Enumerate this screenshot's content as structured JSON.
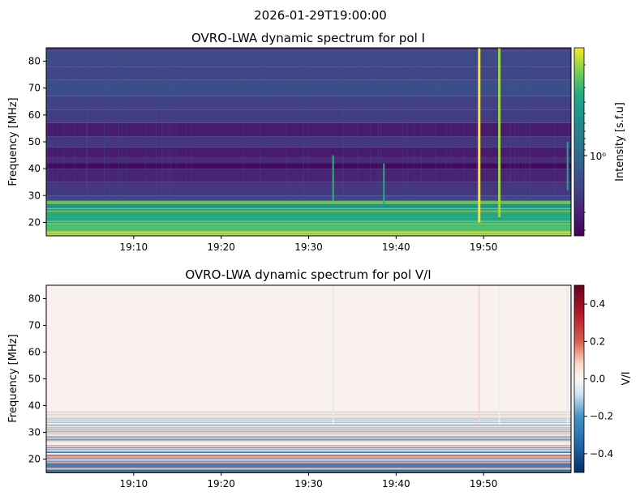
{
  "figure": {
    "suptitle": "2026-01-29T19:00:00"
  },
  "chart_data": [
    {
      "type": "heatmap",
      "title": "OVRO-LWA dynamic spectrum for pol I",
      "xlabel": "",
      "ylabel": "Frequency [MHz]",
      "x_ticks": [
        "19:10",
        "19:20",
        "19:30",
        "19:40",
        "19:50"
      ],
      "x_tick_minutes": [
        10,
        20,
        30,
        40,
        50
      ],
      "xlim_minutes": [
        0,
        60
      ],
      "ylim": [
        15,
        85
      ],
      "y_ticks": [
        20,
        30,
        40,
        50,
        60,
        70,
        80
      ],
      "colormap": "viridis",
      "color_scale": "log",
      "colorbar": {
        "label": "Intensity [s.f.u]",
        "tick_label": "10⁰",
        "tick_value": 1
      },
      "band_levels": [
        {
          "f0": 15,
          "f1": 17,
          "v": 0.95
        },
        {
          "f0": 17,
          "f1": 19,
          "v": 0.82
        },
        {
          "f0": 19,
          "f1": 21,
          "v": 0.88
        },
        {
          "f0": 21,
          "f1": 23,
          "v": 0.72
        },
        {
          "f0": 23,
          "f1": 25,
          "v": 0.78
        },
        {
          "f0": 25,
          "f1": 27,
          "v": 0.62
        },
        {
          "f0": 27,
          "f1": 28,
          "v": 0.9
        },
        {
          "f0": 28,
          "f1": 30,
          "v": 0.28
        },
        {
          "f0": 30,
          "f1": 35,
          "v": 0.2
        },
        {
          "f0": 35,
          "f1": 40,
          "v": 0.13
        },
        {
          "f0": 40,
          "f1": 42,
          "v": 0.03
        },
        {
          "f0": 42,
          "f1": 44,
          "v": 0.16
        },
        {
          "f0": 44,
          "f1": 48,
          "v": 0.1
        },
        {
          "f0": 48,
          "f1": 52,
          "v": 0.2
        },
        {
          "f0": 52,
          "f1": 57,
          "v": 0.1
        },
        {
          "f0": 57,
          "f1": 62,
          "v": 0.22
        },
        {
          "f0": 62,
          "f1": 67,
          "v": 0.24
        },
        {
          "f0": 67,
          "f1": 73,
          "v": 0.3
        },
        {
          "f0": 73,
          "f1": 78,
          "v": 0.26
        },
        {
          "f0": 78,
          "f1": 84,
          "v": 0.28
        },
        {
          "f0": 84,
          "f1": 85,
          "v": 0.2
        }
      ],
      "bursts": [
        {
          "t": 49.5,
          "f_low": 20,
          "f_high": 85,
          "v": 1.0
        },
        {
          "t": 51.8,
          "f_low": 22,
          "f_high": 85,
          "v": 0.8
        },
        {
          "t": 32.8,
          "f_low": 28,
          "f_high": 45,
          "v": 0.5
        },
        {
          "t": 38.6,
          "f_low": 27,
          "f_high": 42,
          "v": 0.45
        },
        {
          "t": 59.6,
          "f_low": 32,
          "f_high": 50,
          "v": 0.4
        }
      ]
    },
    {
      "type": "heatmap",
      "title": "OVRO-LWA dynamic spectrum for pol V/I",
      "xlabel": "",
      "ylabel": "Frequency [MHz]",
      "x_ticks": [
        "19:10",
        "19:20",
        "19:30",
        "19:40",
        "19:50"
      ],
      "x_tick_minutes": [
        10,
        20,
        30,
        40,
        50
      ],
      "xlim_minutes": [
        0,
        60
      ],
      "ylim": [
        15,
        85
      ],
      "y_ticks": [
        20,
        30,
        40,
        50,
        60,
        70,
        80
      ],
      "colormap": "RdBu_r",
      "color_range": [
        -0.5,
        0.5
      ],
      "colorbar": {
        "label": "V/I",
        "ticks": [
          "0.4",
          "0.2",
          "0.0",
          "−0.2",
          "−0.4"
        ],
        "tick_values": [
          0.4,
          0.2,
          0.0,
          -0.2,
          -0.4
        ]
      }
    }
  ]
}
